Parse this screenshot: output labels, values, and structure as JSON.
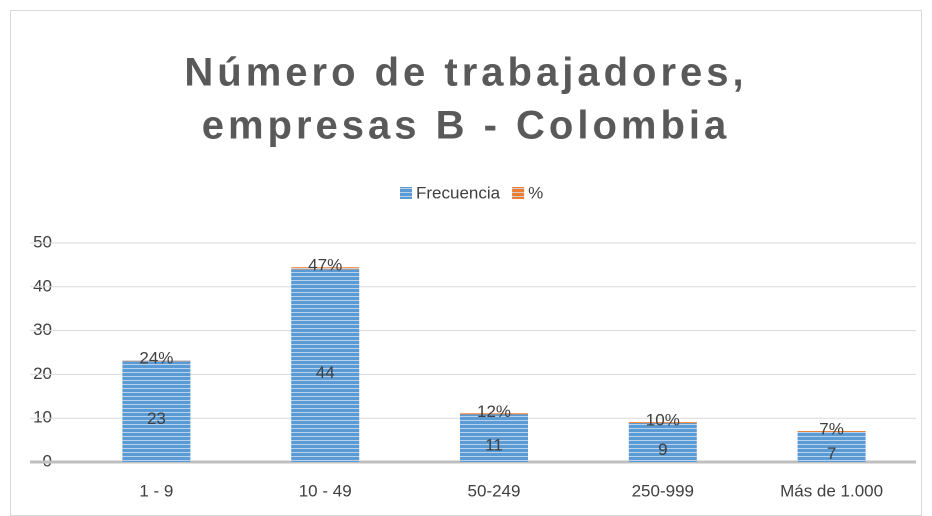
{
  "chart_data": {
    "type": "stacked_bar",
    "title": [
      "Número de trabajadores,",
      "empresas B - Colombia"
    ],
    "categories": [
      "1 - 9",
      "10 - 49",
      "50-249",
      "250-999",
      "Más de 1.000"
    ],
    "series": [
      {
        "name": "Frecuencia",
        "color": "#5b9bd5",
        "values": [
          23,
          44,
          11,
          9,
          7
        ]
      },
      {
        "name": "%",
        "color": "#ed7d31",
        "values": [
          0.24,
          0.47,
          0.12,
          0.1,
          0.07
        ],
        "value_labels": [
          "24%",
          "47%",
          "12%",
          "10%",
          "7%"
        ]
      }
    ],
    "ylim": [
      0,
      50
    ],
    "yticks": [
      0,
      10,
      20,
      30,
      40,
      50
    ],
    "grid": true,
    "legend": "top"
  }
}
